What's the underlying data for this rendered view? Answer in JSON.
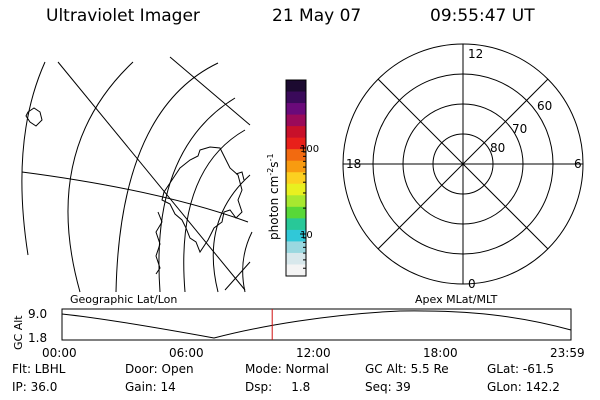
{
  "header": {
    "title": "Ultraviolet Imager",
    "date": "21 May 07",
    "time": "09:55:47 UT"
  },
  "colorbar": {
    "label": "photon cm",
    "label_sup1": "-2",
    "label_mid": "s",
    "label_sup2": "-1",
    "ticks": [
      {
        "label": "100",
        "value": 100
      },
      {
        "label": "10",
        "value": 10
      }
    ],
    "colors": [
      "#1c0a30",
      "#3a0a5a",
      "#6a0a7a",
      "#9a0a5a",
      "#c8102a",
      "#e8201a",
      "#f26a10",
      "#f89b10",
      "#fcd020",
      "#e8f020",
      "#a8e830",
      "#58d838",
      "#28c898",
      "#30c8d8",
      "#9ad8e0",
      "#d8e8ec",
      "#f4f4f4"
    ]
  },
  "polar": {
    "labels": {
      "top": "12",
      "left": "18",
      "right": "6",
      "bottom": "0"
    },
    "rings": [
      "60",
      "70",
      "80"
    ]
  },
  "map_labels": {
    "left": "Geographic Lat/Lon",
    "right": "Apex MLat/MLT"
  },
  "altitude_plot": {
    "axis_label": "GC Alt",
    "y_ticks": [
      "9.0",
      "1.8"
    ],
    "x_ticks": [
      "00:00",
      "06:00",
      "12:00",
      "18:00",
      "23:59"
    ],
    "current_time_fraction": 0.413
  },
  "footer": {
    "flt": "Flt: LBHL",
    "ip": "IP: 36.0",
    "door": "Door: Open",
    "gain": "Gain: 14",
    "mode": "Mode: Normal",
    "dsp": "Dsp:     1.8",
    "gcalt": "GC Alt: 5.5 Re",
    "seq": "Seq: 39",
    "glat": "GLat: -61.5",
    "glon": "GLon: 142.2"
  }
}
